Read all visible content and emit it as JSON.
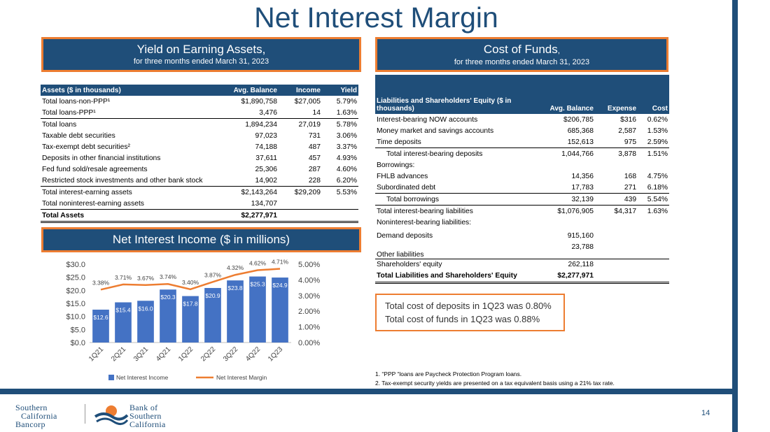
{
  "page": {
    "title": "Net Interest Margin",
    "page_number": "14"
  },
  "yield_header": {
    "line1": "Yield on Earning Assets,",
    "line2": "for three months ended March 31, 2023"
  },
  "cost_header": {
    "line1": "Cost of Funds",
    "line1_suffix": ",",
    "line2": "for three months ended March 31, 2023"
  },
  "assets_table": {
    "columns": [
      "Assets ($ in thousands)",
      "Avg. Balance",
      "Income",
      "Yield"
    ],
    "rows": [
      [
        "Total loans-non-PPP¹",
        "$1,890,758",
        "$27,005",
        "5.79%"
      ],
      [
        "Total loans-PPP¹",
        "3,476",
        "14",
        "1.63%"
      ],
      [
        "Total loans",
        "1,894,234",
        "27,019",
        "5.78%"
      ],
      [
        "Taxable debt securities",
        "97,023",
        "731",
        "3.06%"
      ],
      [
        "Tax-exempt debt securities²",
        "74,188",
        "487",
        "3.37%"
      ],
      [
        "Deposits in other financial institutions",
        "37,611",
        "457",
        "4.93%"
      ],
      [
        "Fed fund sold/resale agreements",
        "25,306",
        "287",
        "4.60%"
      ],
      [
        "Restricted stock investments and other bank stock",
        "14,902",
        "228",
        "6.20%"
      ],
      [
        "Total interest-earning assets",
        "$2,143,264",
        "$29,209",
        "5.53%"
      ],
      [
        "Total noninterest-earning assets",
        "134,707",
        "",
        ""
      ],
      [
        "Total  Assets",
        "$2,277,971",
        "",
        ""
      ]
    ]
  },
  "liabilities_table": {
    "columns": [
      "Liabilities and Shareholders' Equity  ($ in thousands)",
      "Avg. Balance",
      "Expense",
      "Cost"
    ],
    "rows": [
      [
        "Interest-bearing NOW accounts",
        "$206,785",
        "$316",
        "0.62%"
      ],
      [
        "Money market and savings accounts",
        "685,368",
        "2,587",
        "1.53%"
      ],
      [
        "Time deposits",
        "152,613",
        "975",
        "2.59%"
      ],
      [
        "Total interest-bearing deposits",
        "1,044,766",
        "3,878",
        "1.51%"
      ],
      [
        "Borrowings:",
        "",
        "",
        ""
      ],
      [
        "FHLB advances",
        "14,356",
        "168",
        "4.75%"
      ],
      [
        "Subordinated debt",
        "17,783",
        "271",
        "6.18%"
      ],
      [
        "Total borrowings",
        "32,139",
        "439",
        "5.54%"
      ],
      [
        "Total interest-bearing liabilities",
        "$1,076,905",
        "$4,317",
        "1.63%"
      ],
      [
        "Noninterest-bearing liabilities:",
        "",
        "",
        ""
      ],
      [
        "Demand deposits",
        "915,160",
        "",
        ""
      ],
      [
        "Other liabilities",
        "23,788",
        "",
        ""
      ],
      [
        "Shareholders' equity",
        "262,118",
        "",
        ""
      ],
      [
        "Total Liabilities and Shareholders' Equity",
        "$2,277,971",
        "",
        ""
      ]
    ]
  },
  "callout": {
    "line1": "Total cost of deposits in 1Q23 was 0.80%",
    "line2": "Total cost of funds in 1Q23 was 0.88%"
  },
  "nii_header": {
    "label": "Net Interest Income ($ in millions)"
  },
  "footnotes": {
    "note1": "1. “PPP “loans are Paycheck Protection Program loans.",
    "note2": "2. Tax-exempt security yields are presented on a tax equivalent basis using a 21% tax rate."
  },
  "logos": {
    "left": [
      "Southern",
      "California",
      "Bancorp"
    ],
    "right": [
      "Bank of",
      "Southern",
      "California"
    ]
  },
  "colors": {
    "navy": "#1f4e79",
    "orange": "#ed7d31",
    "bar": "#4472c4"
  },
  "chart_data": {
    "type": "bar",
    "categories": [
      "1Q21",
      "2Q21",
      "3Q21",
      "4Q21",
      "1Q22",
      "2Q22",
      "3Q22",
      "4Q22",
      "1Q23"
    ],
    "series": [
      {
        "name": "Net Interest Income",
        "type": "bar",
        "axis": "left",
        "values": [
          12.6,
          15.4,
          16.0,
          20.3,
          17.8,
          20.9,
          23.8,
          25.3,
          24.9
        ],
        "labels": [
          "$12.6",
          "$15.4",
          "$16.0",
          "$20.3",
          "$17.8",
          "$20.9",
          "$23.8",
          "$25.3",
          "$24.9"
        ]
      },
      {
        "name": "Net Interest Margin",
        "type": "line",
        "axis": "right",
        "values": [
          3.38,
          3.71,
          3.67,
          3.74,
          3.4,
          3.87,
          4.32,
          4.62,
          4.71
        ],
        "labels": [
          "3.38%",
          "3.71%",
          "3.67%",
          "3.74%",
          "3.40%",
          "3.87%",
          "4.32%",
          "4.62%",
          "4.71%"
        ]
      }
    ],
    "y_left": {
      "min": 0,
      "max": 30,
      "ticks": [
        "$0.0",
        "$5.0",
        "$10.0",
        "$15.0",
        "$20.0",
        "$25.0",
        "$30.0"
      ]
    },
    "y_right": {
      "min": 0,
      "max": 5,
      "ticks": [
        "0.00%",
        "1.00%",
        "2.00%",
        "3.00%",
        "4.00%",
        "5.00%"
      ]
    },
    "legend": [
      "Net Interest Income",
      "Net Interest Margin"
    ],
    "legend_position": "bottom"
  }
}
